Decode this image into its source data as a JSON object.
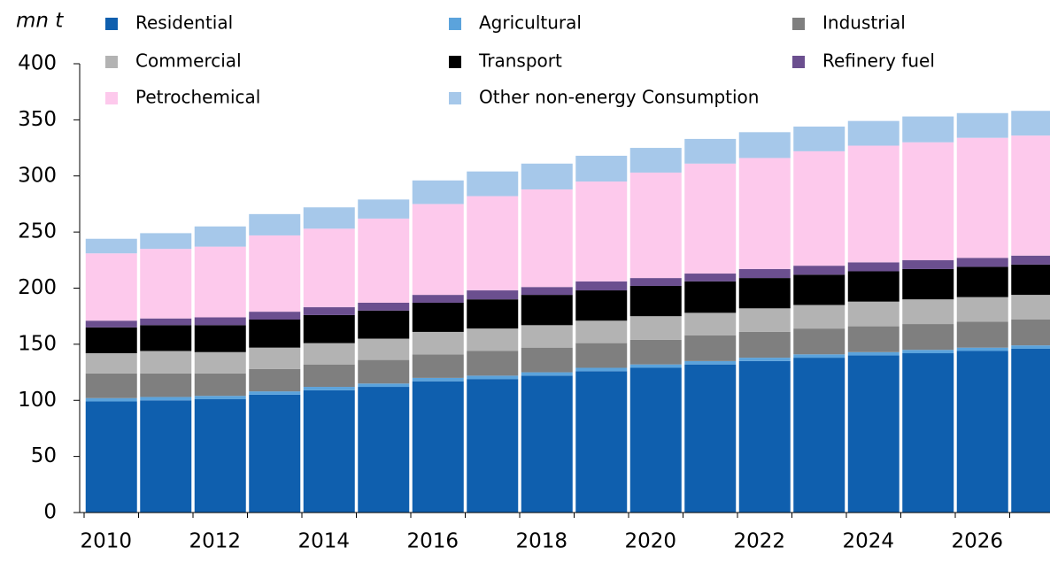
{
  "chart_data": {
    "type": "stacked_bar",
    "y_label": "mn t",
    "categories": [
      "2010",
      null,
      "2012",
      null,
      "2014",
      null,
      "2016",
      null,
      "2018",
      null,
      "2020",
      null,
      "2022",
      null,
      "2024",
      null,
      "2026",
      null
    ],
    "ylim": [
      0,
      400
    ],
    "yticks": [
      0,
      50,
      100,
      150,
      200,
      250,
      300,
      350,
      400
    ],
    "series": [
      {
        "name": "Residential",
        "color": "#0f5fae",
        "values": [
          99,
          100,
          101,
          105,
          109,
          112,
          117,
          119,
          122,
          126,
          129,
          132,
          135,
          138,
          140,
          142,
          144,
          146
        ]
      },
      {
        "name": "Agricultural",
        "color": "#5ba3dc",
        "values": [
          3,
          3,
          3,
          3,
          3,
          3,
          3,
          3,
          3,
          3,
          3,
          3,
          3,
          3,
          3,
          3,
          3,
          3
        ]
      },
      {
        "name": "Industrial",
        "color": "#7f7f7f",
        "values": [
          22,
          21,
          20,
          20,
          20,
          21,
          21,
          22,
          22,
          22,
          22,
          23,
          23,
          23,
          23,
          23,
          23,
          23
        ]
      },
      {
        "name": "Commercial",
        "color": "#b3b3b3",
        "values": [
          18,
          20,
          19,
          19,
          19,
          19,
          20,
          20,
          20,
          20,
          21,
          20,
          21,
          21,
          22,
          22,
          22,
          22
        ]
      },
      {
        "name": "Transport",
        "color": "#000000",
        "values": [
          23,
          23,
          24,
          25,
          25,
          25,
          26,
          26,
          27,
          27,
          27,
          28,
          27,
          27,
          27,
          27,
          27,
          27
        ]
      },
      {
        "name": "Refinery fuel",
        "color": "#6b4f8f",
        "values": [
          6,
          6,
          7,
          7,
          7,
          7,
          7,
          8,
          7,
          8,
          7,
          7,
          8,
          8,
          8,
          8,
          8,
          8
        ]
      },
      {
        "name": "Petrochemical",
        "color": "#fdc9ec",
        "values": [
          60,
          62,
          63,
          68,
          70,
          75,
          81,
          84,
          87,
          89,
          94,
          98,
          99,
          102,
          104,
          105,
          107,
          107
        ]
      },
      {
        "name": "Other non-energy Consumption",
        "color": "#a6c8ea",
        "values": [
          13,
          14,
          18,
          19,
          19,
          17,
          21,
          22,
          23,
          23,
          22,
          22,
          23,
          22,
          22,
          23,
          22,
          22
        ]
      }
    ]
  }
}
